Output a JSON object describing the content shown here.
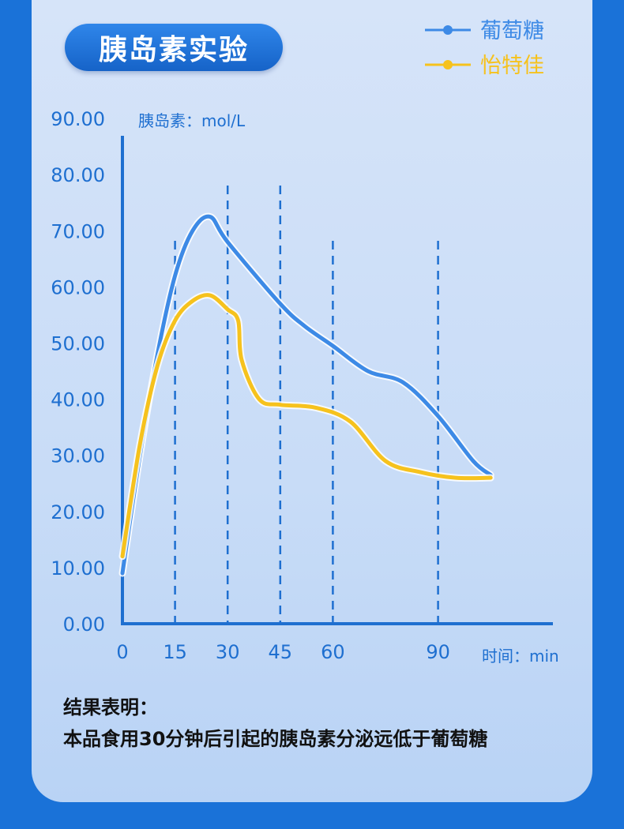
{
  "header": {
    "title": "胰岛素实验"
  },
  "colors": {
    "blue_series": "#3d8ae6",
    "yellow_series": "#f6c21d",
    "axis": "#1e6fd0",
    "tick_text": "#1e6fd0"
  },
  "chart_data": {
    "type": "line",
    "ylabel": "胰岛素：mol/L",
    "xlabel": "时间：min",
    "ylim": [
      0,
      90
    ],
    "y_ticks": [
      "0.00",
      "10.00",
      "20.00",
      "30.00",
      "40.00",
      "50.00",
      "60.00",
      "70.00",
      "80.00",
      "90.00"
    ],
    "x_ticks": [
      "0",
      "15",
      "30",
      "45",
      "60",
      "90"
    ],
    "x_tick_values": [
      0,
      15,
      30,
      45,
      60,
      90
    ],
    "series": [
      {
        "name": "葡萄糖",
        "points": [
          [
            0,
            9
          ],
          [
            5,
            30
          ],
          [
            10,
            48
          ],
          [
            15,
            62
          ],
          [
            20,
            70
          ],
          [
            25,
            72.5
          ],
          [
            30,
            68
          ],
          [
            45,
            57
          ],
          [
            52,
            53
          ],
          [
            60,
            49.5
          ],
          [
            70,
            45
          ],
          [
            80,
            43
          ],
          [
            90,
            37
          ],
          [
            100,
            29
          ],
          [
            105,
            26.5
          ]
        ]
      },
      {
        "name": "怡特佳",
        "points": [
          [
            0,
            12
          ],
          [
            5,
            32
          ],
          [
            10,
            46
          ],
          [
            15,
            54
          ],
          [
            20,
            57.5
          ],
          [
            25,
            58.5
          ],
          [
            30,
            56
          ],
          [
            33,
            54
          ],
          [
            34,
            47
          ],
          [
            39,
            40
          ],
          [
            45,
            39
          ],
          [
            55,
            38.5
          ],
          [
            65,
            36
          ],
          [
            75,
            29
          ],
          [
            85,
            27
          ],
          [
            95,
            26
          ],
          [
            105,
            26
          ]
        ]
      }
    ]
  },
  "conclusion": {
    "heading": "结果表明：",
    "text": "本品食用30分钟后引起的胰岛素分泌远低于葡萄糖"
  }
}
